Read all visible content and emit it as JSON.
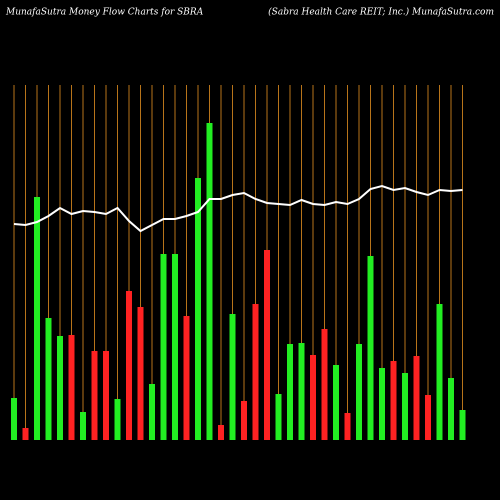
{
  "chart_data": {
    "type": "bar",
    "title": "MunafaSutra  Money Flow  Charts for SBRA",
    "subtitle": "(Sabra  Health Care   REIT;  Inc.) MunafaSutra.com",
    "values": [
      42,
      12,
      243,
      122,
      104,
      105,
      28,
      89,
      89,
      41,
      149,
      133,
      56,
      186,
      186,
      124,
      262,
      317,
      15,
      126,
      39,
      136,
      190,
      46,
      96,
      97,
      85,
      111,
      75,
      27,
      96,
      184,
      72,
      79,
      67,
      84,
      45,
      136,
      62,
      30
    ],
    "colors": [
      "#22ee22",
      "#ff2222",
      "#22ee22",
      "#22ee22",
      "#22ee22",
      "#ff2222",
      "#22ee22",
      "#ff2222",
      "#ff2222",
      "#22ee22",
      "#ff2222",
      "#ff2222",
      "#22ee22",
      "#22ee22",
      "#22ee22",
      "#ff2222",
      "#22ee22",
      "#22ee22",
      "#ff2222",
      "#22ee22",
      "#ff2222",
      "#ff2222",
      "#ff2222",
      "#22ee22",
      "#22ee22",
      "#22ee22",
      "#ff2222",
      "#ff2222",
      "#22ee22",
      "#ff2222",
      "#22ee22",
      "#22ee22",
      "#22ee22",
      "#ff2222",
      "#22ee22",
      "#ff2222",
      "#ff2222",
      "#22ee22",
      "#22ee22",
      "#22ee22"
    ],
    "line_values": [
      216,
      215,
      218,
      224,
      232,
      226,
      229,
      228,
      226,
      232,
      219,
      209,
      215,
      221,
      221,
      224,
      228,
      241,
      241,
      245,
      247,
      241,
      237,
      236,
      235,
      240,
      236,
      235,
      238,
      236,
      241,
      251,
      254,
      250,
      252,
      248,
      245,
      250,
      249,
      250
    ],
    "line_color": "#ffffff",
    "grid_color": "#b8741a",
    "ylim": [
      0,
      355
    ]
  }
}
